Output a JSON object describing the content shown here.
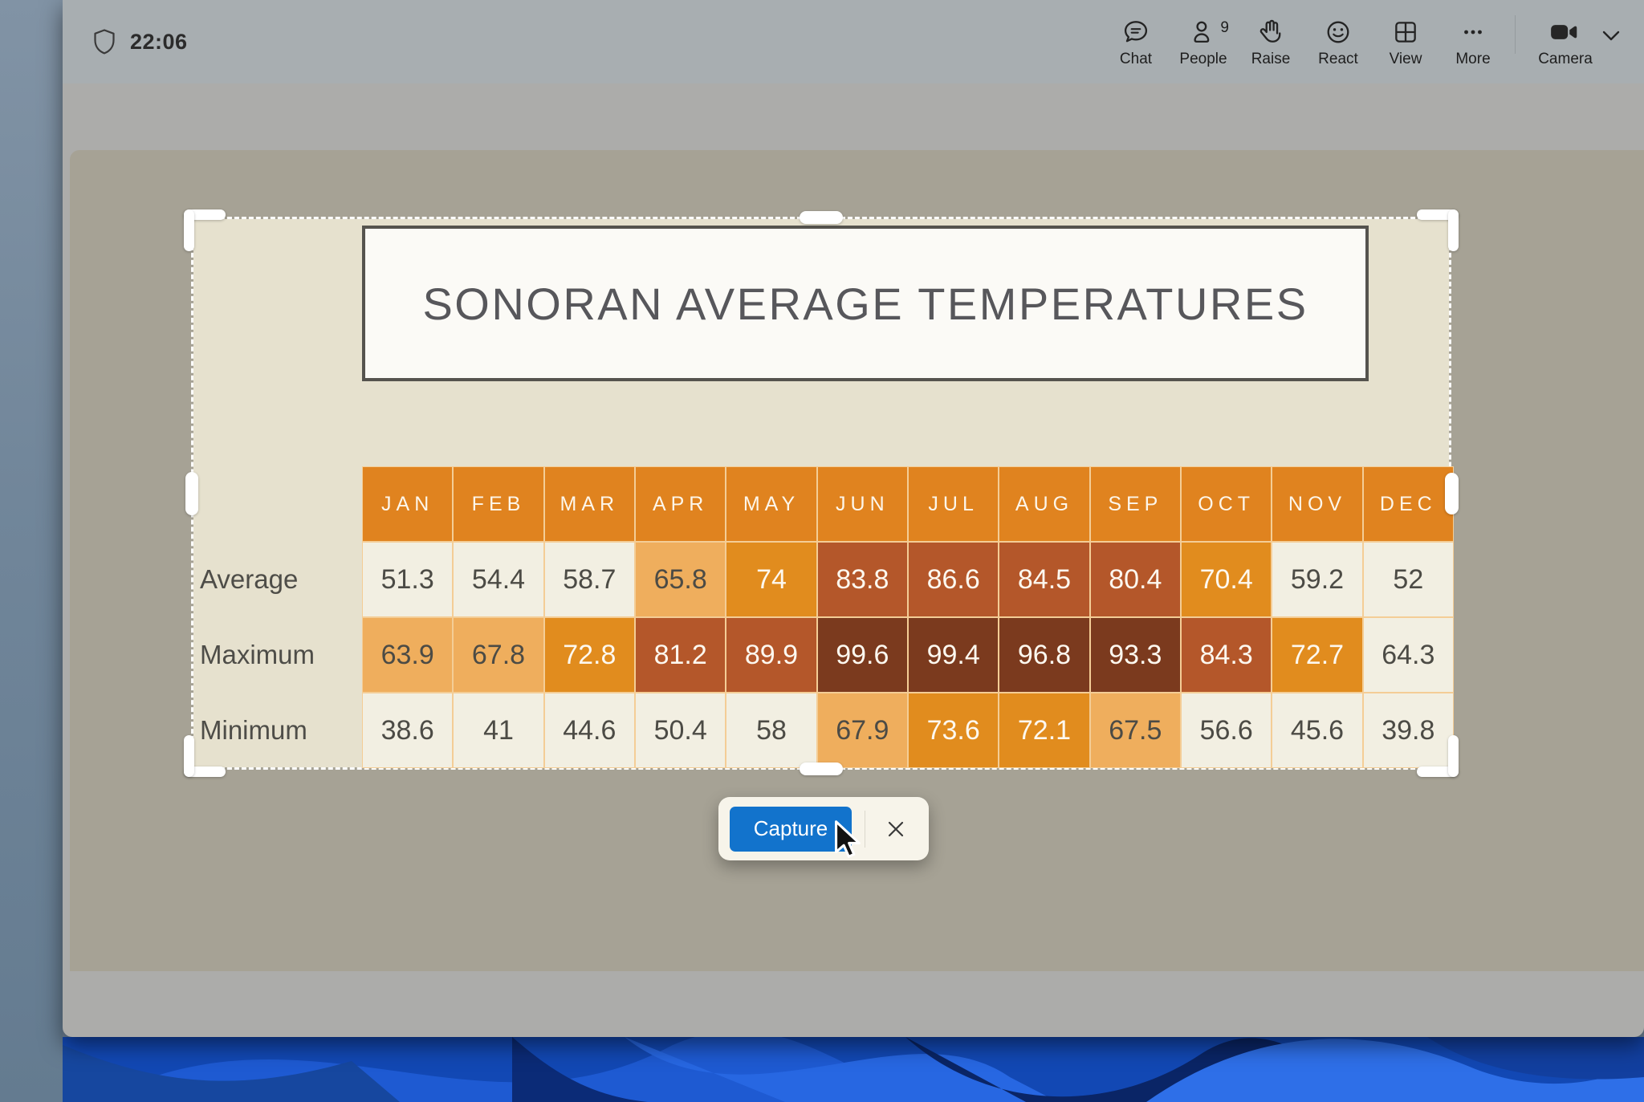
{
  "meeting_bar": {
    "time": "22:06",
    "actions": [
      {
        "id": "chat",
        "label": "Chat"
      },
      {
        "id": "people",
        "label": "People",
        "badge": "9"
      },
      {
        "id": "raise",
        "label": "Raise"
      },
      {
        "id": "react",
        "label": "React"
      },
      {
        "id": "view",
        "label": "View"
      },
      {
        "id": "more",
        "label": "More"
      },
      {
        "id": "camera",
        "label": "Camera"
      }
    ]
  },
  "slide": {
    "title": "SONORAN AVERAGE TEMPERATURES"
  },
  "table": {
    "columns": [
      "JAN",
      "FEB",
      "MAR",
      "APR",
      "MAY",
      "JUN",
      "JUL",
      "AUG",
      "SEP",
      "OCT",
      "NOV",
      "DEC"
    ],
    "rows": [
      {
        "label": "Average",
        "values": [
          "51.3",
          "54.4",
          "58.7",
          "65.8",
          "74",
          "83.8",
          "86.6",
          "84.5",
          "80.4",
          "70.4",
          "59.2",
          "52"
        ],
        "heat": [
          "cream",
          "cream",
          "cream",
          "light",
          "orange",
          "rust",
          "rust",
          "rust",
          "rust",
          "orange",
          "cream",
          "cream"
        ]
      },
      {
        "label": "Maximum",
        "values": [
          "63.9",
          "67.8",
          "72.8",
          "81.2",
          "89.9",
          "99.6",
          "99.4",
          "96.8",
          "93.3",
          "84.3",
          "72.7",
          "64.3"
        ],
        "heat": [
          "light",
          "light",
          "orange",
          "rust",
          "rust",
          "dark",
          "dark",
          "dark",
          "dark",
          "rust",
          "orange",
          "cream"
        ]
      },
      {
        "label": "Minimum",
        "values": [
          "38.6",
          "41",
          "44.6",
          "50.4",
          "58",
          "67.9",
          "73.6",
          "72.1",
          "67.5",
          "56.6",
          "45.6",
          "39.8"
        ],
        "heat": [
          "cream",
          "cream",
          "cream",
          "cream",
          "cream",
          "light",
          "orange",
          "orange",
          "light",
          "cream",
          "cream",
          "cream"
        ]
      }
    ]
  },
  "capture_toolbar": {
    "capture_label": "Capture"
  },
  "colors": {
    "header_orange": "#E0831F",
    "heat_cream": "#F2EFE2",
    "heat_light": "#EFAE5D",
    "heat_orange": "#E18C1E",
    "heat_rust": "#B4572A",
    "heat_dark": "#7B3A1E",
    "cell_border": "#F4CD96",
    "accent_blue": "#1273CC",
    "slide_bg": "#E6E1CE",
    "dim_bg": "#A6A295"
  }
}
